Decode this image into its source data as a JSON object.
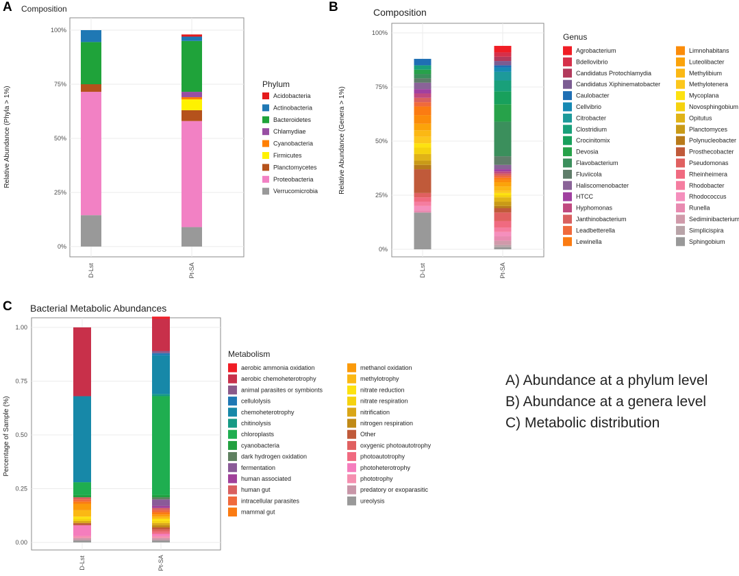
{
  "chart_data": [
    {
      "panel": "A",
      "type": "bar",
      "stacked": true,
      "title": "Composition",
      "xlabel": "",
      "ylabel": "Relative Abundance (Phyla > 1%)",
      "ylim": [
        0,
        100
      ],
      "y_ticks": [
        "0%",
        "25%",
        "50%",
        "75%",
        "100%"
      ],
      "categories": [
        "D-Lst",
        "Pt-SA"
      ],
      "legend_title": "Phylum",
      "series": [
        {
          "name": "Acidobacteria",
          "color": "#e41a1c",
          "values": [
            0,
            1
          ]
        },
        {
          "name": "Actinobacteria",
          "color": "#1f78b4",
          "values": [
            5.5,
            2
          ]
        },
        {
          "name": "Bacteroidetes",
          "color": "#1fa33a",
          "values": [
            19.5,
            23.5
          ]
        },
        {
          "name": "Chlamydiae",
          "color": "#984ea3",
          "values": [
            0,
            2.5
          ]
        },
        {
          "name": "Cyanobacteria",
          "color": "#ff7f00",
          "values": [
            0,
            1
          ]
        },
        {
          "name": "Firmicutes",
          "color": "#fff200",
          "values": [
            0,
            5
          ]
        },
        {
          "name": "Planctomycetes",
          "color": "#b5521c",
          "values": [
            3.5,
            5
          ]
        },
        {
          "name": "Proteobacteria",
          "color": "#f281c4",
          "values": [
            57,
            49
          ]
        },
        {
          "name": "Verrucomicrobia",
          "color": "#999999",
          "values": [
            14.5,
            9
          ]
        }
      ]
    },
    {
      "panel": "B",
      "type": "bar",
      "stacked": true,
      "title": "Composition",
      "xlabel": "",
      "ylabel": "Relative Abundance (Genera > 1%)",
      "ylim": [
        0,
        100
      ],
      "y_ticks": [
        "0%",
        "25%",
        "50%",
        "75%",
        "100%"
      ],
      "categories": [
        "D-Lst",
        "Pt-SA"
      ],
      "legend_title": "Genus",
      "series": [
        {
          "name": "Agrobacterium",
          "color": "#f01d25",
          "values": [
            0,
            3
          ]
        },
        {
          "name": "Bdellovibrio",
          "color": "#d6304a",
          "values": [
            0,
            2
          ]
        },
        {
          "name": "Candidatus Protochlamydia",
          "color": "#b23a5c",
          "values": [
            0,
            2
          ]
        },
        {
          "name": "Candidatus Xiphinematobacter",
          "color": "#7b5c92",
          "values": [
            0,
            2
          ]
        },
        {
          "name": "Caulobacter",
          "color": "#1f6fb4",
          "values": [
            3,
            1
          ]
        },
        {
          "name": "Cellvibrio",
          "color": "#1689b3",
          "values": [
            0,
            2
          ]
        },
        {
          "name": "Citrobacter",
          "color": "#1d9a9a",
          "values": [
            0,
            4
          ]
        },
        {
          "name": "Clostridium",
          "color": "#19a07a",
          "values": [
            2,
            5
          ]
        },
        {
          "name": "Crocinitomix",
          "color": "#18a05c",
          "values": [
            0,
            6
          ]
        },
        {
          "name": "Devosia",
          "color": "#27a24a",
          "values": [
            2,
            8
          ]
        },
        {
          "name": "Flavobacterium",
          "color": "#3b8f5c",
          "values": [
            2,
            16
          ]
        },
        {
          "name": "Fluviicola",
          "color": "#5f7d6a",
          "values": [
            2,
            4
          ]
        },
        {
          "name": "Haliscomenobacter",
          "color": "#8a6398",
          "values": [
            3,
            2
          ]
        },
        {
          "name": "HTCC",
          "color": "#a040a0",
          "values": [
            2,
            1
          ]
        },
        {
          "name": "Hyphomonas",
          "color": "#c0497f",
          "values": [
            2,
            1
          ]
        },
        {
          "name": "Janthinobacterium",
          "color": "#d9605f",
          "values": [
            2,
            1
          ]
        },
        {
          "name": "Leadbetterella",
          "color": "#f06a3c",
          "values": [
            2,
            1
          ]
        },
        {
          "name": "Lewinella",
          "color": "#fb7b12",
          "values": [
            4,
            1
          ]
        },
        {
          "name": "Limnohabitans",
          "color": "#fb8c0a",
          "values": [
            4,
            1
          ]
        },
        {
          "name": "Luteolibacter",
          "color": "#fba30a",
          "values": [
            3,
            2
          ]
        },
        {
          "name": "Methylibium",
          "color": "#fbb814",
          "values": [
            3,
            2
          ]
        },
        {
          "name": "Methylotenera",
          "color": "#fcc71c",
          "values": [
            3,
            1
          ]
        },
        {
          "name": "Mycoplana",
          "color": "#fde210",
          "values": [
            2,
            1
          ]
        },
        {
          "name": "Novosphingobium",
          "color": "#f5d20f",
          "values": [
            3,
            1
          ]
        },
        {
          "name": "Opitutus",
          "color": "#e0b317",
          "values": [
            3,
            2
          ]
        },
        {
          "name": "Planctomyces",
          "color": "#c99a17",
          "values": [
            2,
            2
          ]
        },
        {
          "name": "Polynucleobacter",
          "color": "#b87a1a",
          "values": [
            2,
            1
          ]
        },
        {
          "name": "Prosthecobacter",
          "color": "#c05a3a",
          "values": [
            11,
            2
          ]
        },
        {
          "name": "Pseudomonas",
          "color": "#e06060",
          "values": [
            2,
            4
          ]
        },
        {
          "name": "Rheinheimera",
          "color": "#f06a80",
          "values": [
            2,
            3
          ]
        },
        {
          "name": "Rhodobacter",
          "color": "#f57da0",
          "values": [
            2,
            2
          ]
        },
        {
          "name": "Rhodococcus",
          "color": "#f58fbd",
          "values": [
            2,
            2
          ]
        },
        {
          "name": "Runella",
          "color": "#e88ab0",
          "values": [
            1,
            2
          ]
        },
        {
          "name": "Sediminibacterium",
          "color": "#d09aaa",
          "values": [
            0,
            2
          ]
        },
        {
          "name": "Simplicispira",
          "color": "#b8a4a8",
          "values": [
            0,
            1
          ]
        },
        {
          "name": "Sphingobium",
          "color": "#999999",
          "values": [
            17,
            1
          ]
        }
      ]
    },
    {
      "panel": "C",
      "type": "bar",
      "stacked": true,
      "title": "Bacterial Metabolic Abundances",
      "xlabel": "",
      "ylabel": "Percentage of Sample (%)",
      "ylim": [
        0,
        1
      ],
      "y_ticks": [
        "0.00",
        "0.25",
        "0.50",
        "0.75",
        "1.00"
      ],
      "categories": [
        "D-Lst",
        "Pt-SA"
      ],
      "legend_title": "Metabolism",
      "series": [
        {
          "name": "aerobic ammonia oxidation",
          "color": "#f01d25",
          "values": [
            0,
            0.01
          ]
        },
        {
          "name": "aerobic chemoheterotrophy",
          "color": "#c8304a",
          "values": [
            0.32,
            0.15
          ]
        },
        {
          "name": "animal parasites or symbionts",
          "color": "#8a5a8a",
          "values": [
            0,
            0.01
          ]
        },
        {
          "name": "cellulolysis",
          "color": "#1f78b4",
          "values": [
            0,
            0.01
          ]
        },
        {
          "name": "chemoheterotrophy",
          "color": "#1788a8",
          "values": [
            0.4,
            0.18
          ]
        },
        {
          "name": "chitinolysis",
          "color": "#169a84",
          "values": [
            0,
            0.01
          ]
        },
        {
          "name": "chloroplasts",
          "color": "#1fae50",
          "values": [
            0.06,
            0.46
          ]
        },
        {
          "name": "cyanobacteria",
          "color": "#22a040",
          "values": [
            0.01,
            0.01
          ]
        },
        {
          "name": "dark hydrogen oxidation",
          "color": "#5f8060",
          "values": [
            0,
            0.01
          ]
        },
        {
          "name": "fermentation",
          "color": "#8a5a98",
          "values": [
            0,
            0.03
          ]
        },
        {
          "name": "human associated",
          "color": "#a0409a",
          "values": [
            0,
            0.01
          ]
        },
        {
          "name": "human gut",
          "color": "#d9605f",
          "values": [
            0.01,
            0.01
          ]
        },
        {
          "name": "intracellular parasites",
          "color": "#f06a3c",
          "values": [
            0.01,
            0.01
          ]
        },
        {
          "name": "mammal gut",
          "color": "#fb7b12",
          "values": [
            0.01,
            0.01
          ]
        },
        {
          "name": "methanol oxidation",
          "color": "#fb9a0a",
          "values": [
            0.03,
            0.01
          ]
        },
        {
          "name": "methylotrophy",
          "color": "#fbb814",
          "values": [
            0.03,
            0.01
          ]
        },
        {
          "name": "nitrate reduction",
          "color": "#fde210",
          "values": [
            0.01,
            0.01
          ]
        },
        {
          "name": "nitrate respiration",
          "color": "#f5d20f",
          "values": [
            0.01,
            0.01
          ]
        },
        {
          "name": "nitrification",
          "color": "#d9a617",
          "values": [
            0.01,
            0.01
          ]
        },
        {
          "name": "nitrogen respiration",
          "color": "#c08a17",
          "values": [
            0,
            0.01
          ]
        },
        {
          "name": "Other",
          "color": "#c05a3a",
          "values": [
            0.01,
            0.01
          ]
        },
        {
          "name": "oxygenic photoautotrophy",
          "color": "#e06060",
          "values": [
            0,
            0.01
          ]
        },
        {
          "name": "photoautotrophy",
          "color": "#f06a80",
          "values": [
            0,
            0.01
          ]
        },
        {
          "name": "photoheterotrophy",
          "color": "#f57dbd",
          "values": [
            0.05,
            0.01
          ]
        },
        {
          "name": "phototrophy",
          "color": "#f58fb0",
          "values": [
            0.01,
            0.01
          ]
        },
        {
          "name": "predatory or exoparasitic",
          "color": "#c896a8",
          "values": [
            0.01,
            0.01
          ]
        },
        {
          "name": "ureolysis",
          "color": "#999999",
          "values": [
            0.01,
            0.01
          ]
        }
      ]
    }
  ],
  "panels": {
    "A": {
      "letter": "A"
    },
    "B": {
      "letter": "B"
    },
    "C": {
      "letter": "C"
    }
  },
  "caption": {
    "lines": [
      "A)  Abundance at a phylum level",
      "B)  Abundance at a genera level",
      "C)  Metabolic distribution"
    ]
  }
}
